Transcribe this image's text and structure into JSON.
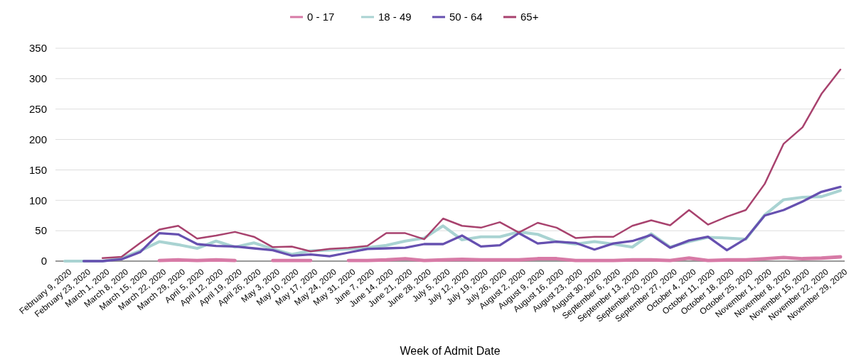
{
  "chart_data": {
    "type": "line",
    "xlabel": "Week of Admit Date",
    "categories": [
      "February 9, 2020",
      "February 23, 2020",
      "March 1, 2020",
      "March 8, 2020",
      "March 15, 2020",
      "March 22, 2020",
      "March 29, 2020",
      "April 5, 2020",
      "April 12, 2020",
      "April 19, 2020",
      "April 26, 2020",
      "May 3, 2020",
      "May 10, 2020",
      "May 17, 2020",
      "May 24, 2020",
      "May 31, 2020",
      "June 7, 2020",
      "June 14, 2020",
      "June 21, 2020",
      "June 28, 2020",
      "July 5, 2020",
      "July 12, 2020",
      "July 19, 2020",
      "July 26, 2020",
      "August 2, 2020",
      "August 9, 2020",
      "August 16, 2020",
      "August 23, 2020",
      "August 30, 2020",
      "September 6, 2020",
      "September 13, 2020",
      "September 20, 2020",
      "September 27, 2020",
      "October 4, 2020",
      "October 11, 2020",
      "October 18, 2020",
      "October 25, 2020",
      "November 1, 2020",
      "November 8, 2020",
      "November 15, 2020",
      "November 22, 2020",
      "November 29, 2020"
    ],
    "series": [
      {
        "name": "0 - 17",
        "color": "#d77aa6",
        "values": [
          null,
          null,
          null,
          null,
          null,
          1,
          2,
          1,
          2,
          1,
          null,
          1,
          1,
          1,
          null,
          1,
          1,
          2,
          4,
          1,
          2,
          3,
          2,
          2,
          2,
          4,
          4,
          1,
          1,
          1,
          2,
          2,
          1,
          5,
          1,
          2,
          2,
          4,
          6,
          4,
          5,
          7
        ]
      },
      {
        "name": "18 - 49",
        "color": "#a9d3d2",
        "values": [
          0,
          0,
          0,
          5,
          17,
          32,
          27,
          21,
          33,
          23,
          30,
          20,
          11,
          17,
          18,
          20,
          22,
          26,
          33,
          38,
          58,
          35,
          40,
          40,
          48,
          44,
          32,
          28,
          32,
          28,
          23,
          45,
          23,
          32,
          39,
          38,
          36,
          76,
          101,
          105,
          106,
          116
        ]
      },
      {
        "name": "50 - 64",
        "color": "#6650b0",
        "values": [
          null,
          0,
          0,
          3,
          15,
          46,
          44,
          28,
          25,
          24,
          21,
          18,
          9,
          11,
          8,
          14,
          20,
          21,
          22,
          28,
          28,
          42,
          24,
          26,
          46,
          29,
          32,
          30,
          19,
          29,
          33,
          43,
          22,
          34,
          40,
          18,
          37,
          75,
          84,
          98,
          114,
          122
        ]
      },
      {
        "name": "65+",
        "color": "#a8426e",
        "values": [
          null,
          null,
          5,
          7,
          30,
          52,
          58,
          37,
          42,
          48,
          40,
          23,
          24,
          16,
          20,
          22,
          25,
          46,
          46,
          36,
          70,
          58,
          55,
          64,
          47,
          63,
          55,
          38,
          40,
          40,
          58,
          67,
          59,
          84,
          60,
          73,
          84,
          127,
          193,
          220,
          275,
          315
        ]
      }
    ],
    "ylim": [
      0,
      350
    ],
    "yticks": [
      0,
      50,
      100,
      150,
      200,
      250,
      300,
      350
    ],
    "grid": "y",
    "legend": "top",
    "line_style": "solid",
    "marker": "none"
  }
}
